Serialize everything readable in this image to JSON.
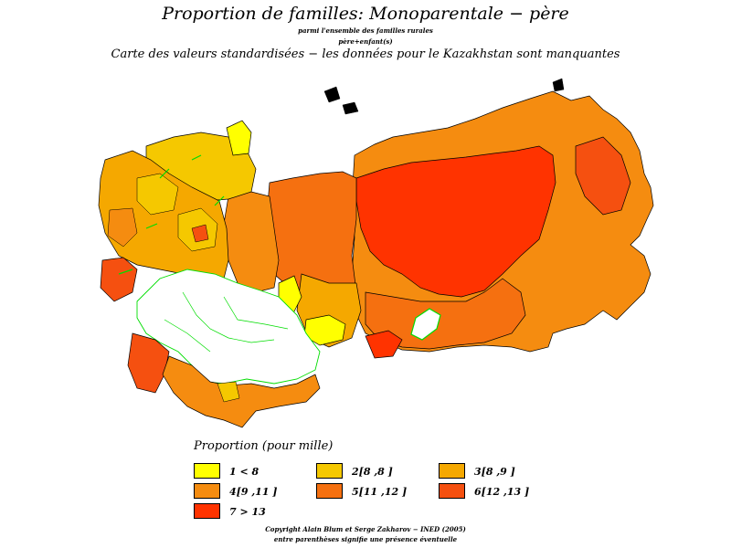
{
  "header": {
    "title": "Proportion de familles: Monoparentale − père",
    "subtitle_line1": "parmi l'ensemble des familles rurales",
    "subtitle_line2": "père+enfant(s)",
    "subtitle_line3": "Carte des valeurs standardisées − les données pour le Kazakhstan sont manquantes"
  },
  "legend": {
    "title": "Proportion (pour mille)",
    "items": [
      {
        "label": "1  <  8",
        "color": "#ffff00"
      },
      {
        "label": "2[8 ,8  ]",
        "color": "#f5c800"
      },
      {
        "label": "3[8 ,9  ]",
        "color": "#f5a800"
      },
      {
        "label": "4[9 ,11 ]",
        "color": "#f58c10"
      },
      {
        "label": "5[11 ,12  ]",
        "color": "#f57010"
      },
      {
        "label": "6[12 ,13  ]",
        "color": "#f55010"
      },
      {
        "label": "7  >  13",
        "color": "#ff3300"
      }
    ]
  },
  "map": {
    "missing_color": "#ffffff",
    "boundary_color_missing": "#00dd00",
    "region_border_color": "#000000"
  },
  "footer": {
    "copyright": "Copyright Alain Blum et Serge Zakharov − INED (2005)",
    "note": "entre parenthèses signifie une présence éventuelle"
  }
}
